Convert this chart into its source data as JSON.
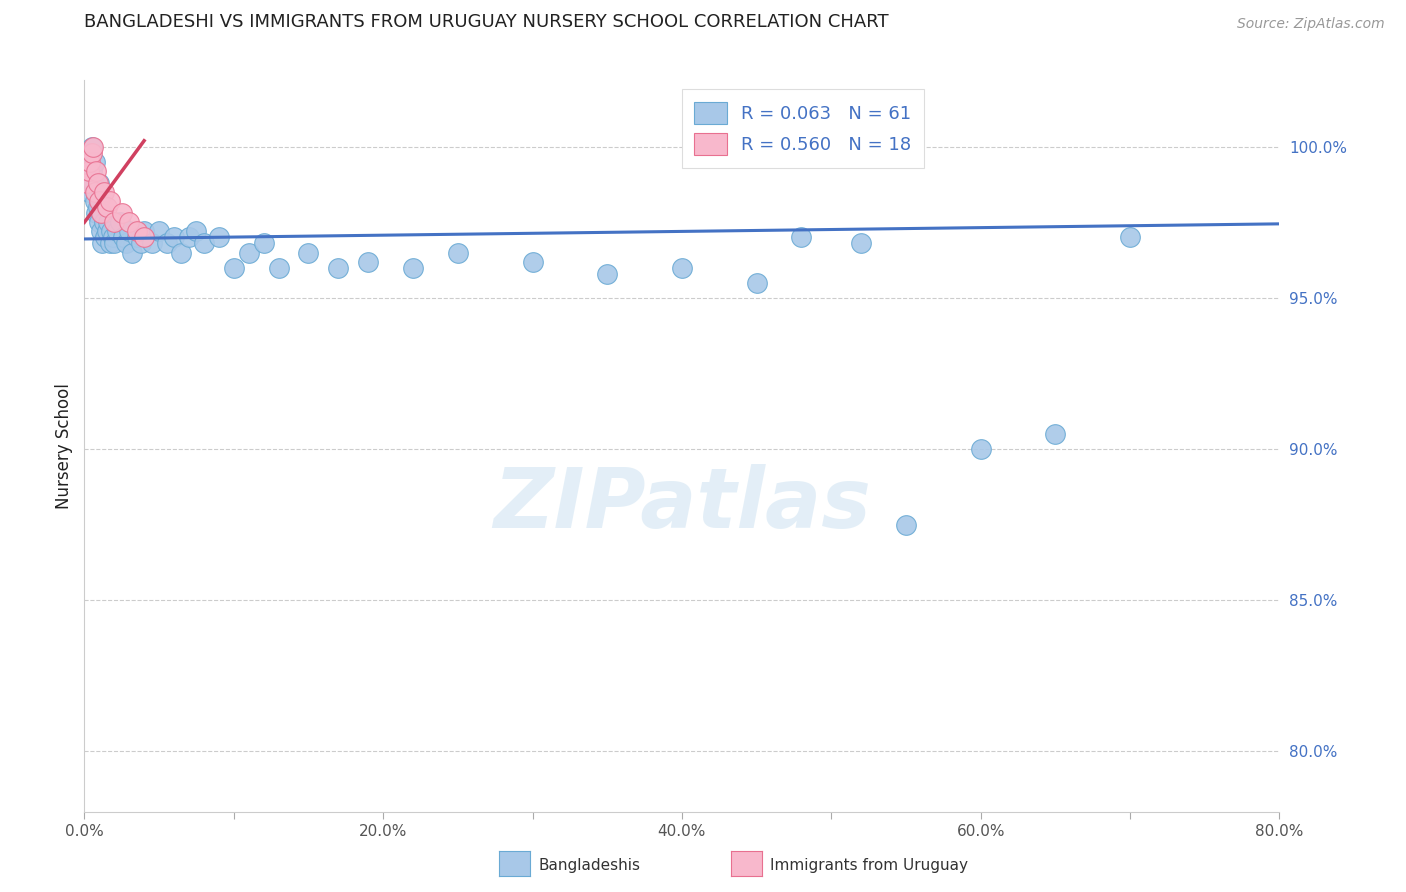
{
  "title": "BANGLADESHI VS IMMIGRANTS FROM URUGUAY NURSERY SCHOOL CORRELATION CHART",
  "source": "Source: ZipAtlas.com",
  "ylabel": "Nursery School",
  "xlim": [
    0.0,
    0.8
  ],
  "ylim": [
    0.78,
    1.022
  ],
  "yticks": [
    0.8,
    0.85,
    0.9,
    0.95,
    1.0
  ],
  "ytick_labels": [
    "80.0%",
    "85.0%",
    "90.0%",
    "95.0%",
    "100.0%"
  ],
  "xticks": [
    0.0,
    0.1,
    0.2,
    0.3,
    0.4,
    0.5,
    0.6,
    0.7,
    0.8
  ],
  "xtick_labels": [
    "0.0%",
    "",
    "20.0%",
    "",
    "40.0%",
    "",
    "60.0%",
    "",
    "80.0%"
  ],
  "legend_r_blue": "R = 0.063",
  "legend_n_blue": "N = 61",
  "legend_r_pink": "R = 0.560",
  "legend_n_pink": "N = 18",
  "blue_scatter_x": [
    0.002,
    0.003,
    0.004,
    0.005,
    0.005,
    0.006,
    0.007,
    0.007,
    0.008,
    0.008,
    0.009,
    0.01,
    0.01,
    0.011,
    0.012,
    0.012,
    0.013,
    0.014,
    0.015,
    0.016,
    0.017,
    0.018,
    0.019,
    0.02,
    0.022,
    0.024,
    0.026,
    0.028,
    0.03,
    0.032,
    0.035,
    0.038,
    0.04,
    0.045,
    0.05,
    0.055,
    0.06,
    0.065,
    0.07,
    0.075,
    0.08,
    0.09,
    0.1,
    0.11,
    0.12,
    0.13,
    0.15,
    0.17,
    0.19,
    0.22,
    0.25,
    0.3,
    0.35,
    0.4,
    0.45,
    0.48,
    0.52,
    0.55,
    0.6,
    0.65,
    0.7
  ],
  "blue_scatter_y": [
    0.99,
    0.985,
    0.998,
    1.0,
    0.992,
    0.988,
    0.995,
    0.982,
    0.985,
    0.978,
    0.98,
    0.975,
    0.988,
    0.972,
    0.978,
    0.968,
    0.975,
    0.97,
    0.972,
    0.975,
    0.968,
    0.972,
    0.97,
    0.968,
    0.972,
    0.975,
    0.97,
    0.968,
    0.972,
    0.965,
    0.97,
    0.968,
    0.972,
    0.968,
    0.972,
    0.968,
    0.97,
    0.965,
    0.97,
    0.972,
    0.968,
    0.97,
    0.96,
    0.965,
    0.968,
    0.96,
    0.965,
    0.96,
    0.962,
    0.96,
    0.965,
    0.962,
    0.958,
    0.96,
    0.955,
    0.97,
    0.968,
    0.875,
    0.9,
    0.905,
    0.97
  ],
  "pink_scatter_x": [
    0.002,
    0.003,
    0.004,
    0.005,
    0.006,
    0.007,
    0.008,
    0.009,
    0.01,
    0.011,
    0.013,
    0.015,
    0.017,
    0.02,
    0.025,
    0.03,
    0.035,
    0.04
  ],
  "pink_scatter_y": [
    0.988,
    0.992,
    0.995,
    0.998,
    1.0,
    0.985,
    0.992,
    0.988,
    0.982,
    0.978,
    0.985,
    0.98,
    0.982,
    0.975,
    0.978,
    0.975,
    0.972,
    0.97
  ],
  "blue_line_x": [
    0.0,
    0.8
  ],
  "blue_line_y": [
    0.9695,
    0.9745
  ],
  "pink_line_x": [
    0.0,
    0.04
  ],
  "pink_line_y": [
    0.975,
    1.002
  ],
  "blue_color": "#a8c8e8",
  "blue_edge": "#6aaad4",
  "pink_color": "#f8b8cc",
  "pink_edge": "#e87090",
  "blue_line_color": "#4472c4",
  "pink_line_color": "#d04060",
  "watermark_text": "ZIPatlas",
  "grid_color": "#cccccc",
  "title_color": "#222222",
  "ylabel_color": "#222222",
  "ytick_color": "#4472c4",
  "xtick_color": "#555555"
}
